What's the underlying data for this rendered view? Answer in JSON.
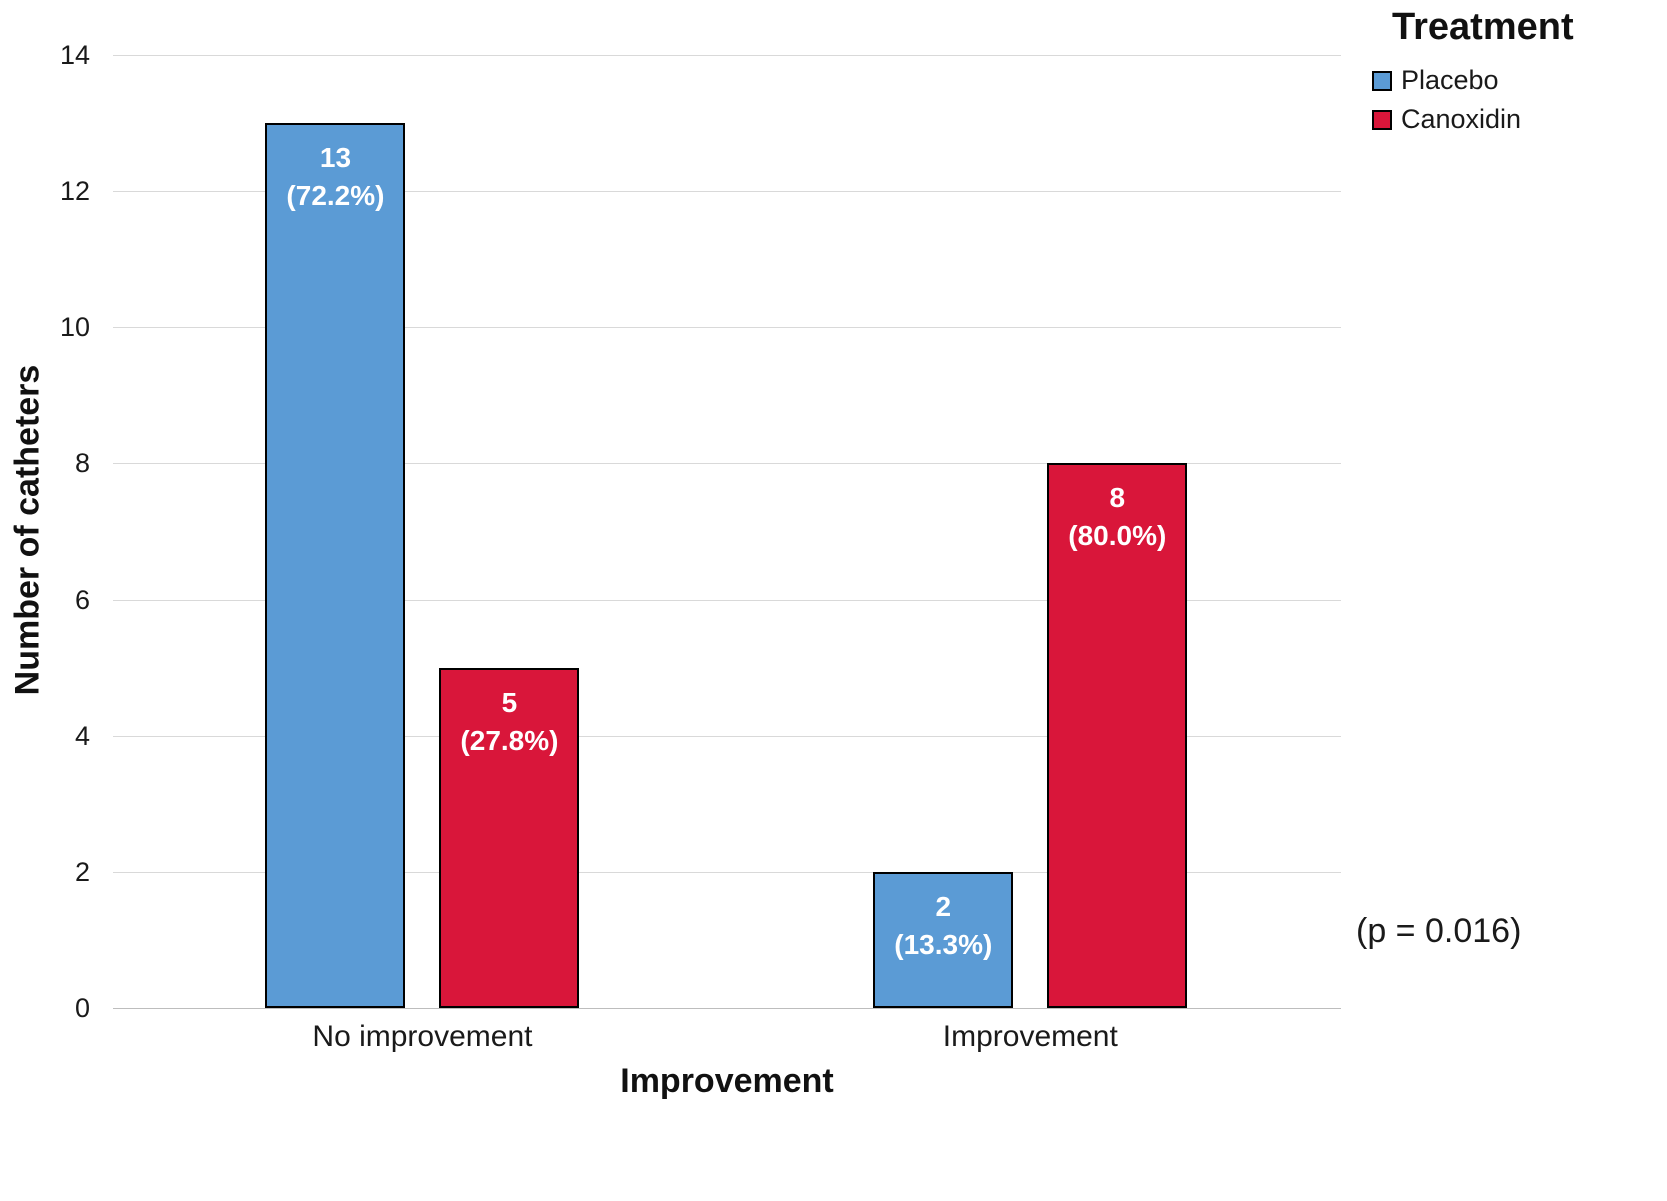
{
  "chart_data": {
    "type": "bar",
    "categories": [
      "No improvement",
      "Improvement"
    ],
    "series": [
      {
        "name": "Placebo",
        "color": "#5B9BD5",
        "values": [
          13,
          2
        ],
        "percent_labels": [
          "(72.2%)",
          "(13.3%)"
        ]
      },
      {
        "name": "Canoxidin",
        "color": "#D9163A",
        "values": [
          5,
          8
        ],
        "percent_labels": [
          "(27.8%)",
          "(80.0%)"
        ]
      }
    ],
    "xlabel": "Improvement",
    "ylabel": "Number of catheters",
    "ylim": [
      0,
      14
    ],
    "yticks": [
      "0",
      "2",
      "4",
      "6",
      "8",
      "10",
      "12",
      "14"
    ],
    "grid": true,
    "legend": {
      "title": "Treatment",
      "position": "top-right"
    },
    "annotation": "(p = 0.016)",
    "bar_border_color": "#000000",
    "gridline_color": "#d9d9d9"
  }
}
